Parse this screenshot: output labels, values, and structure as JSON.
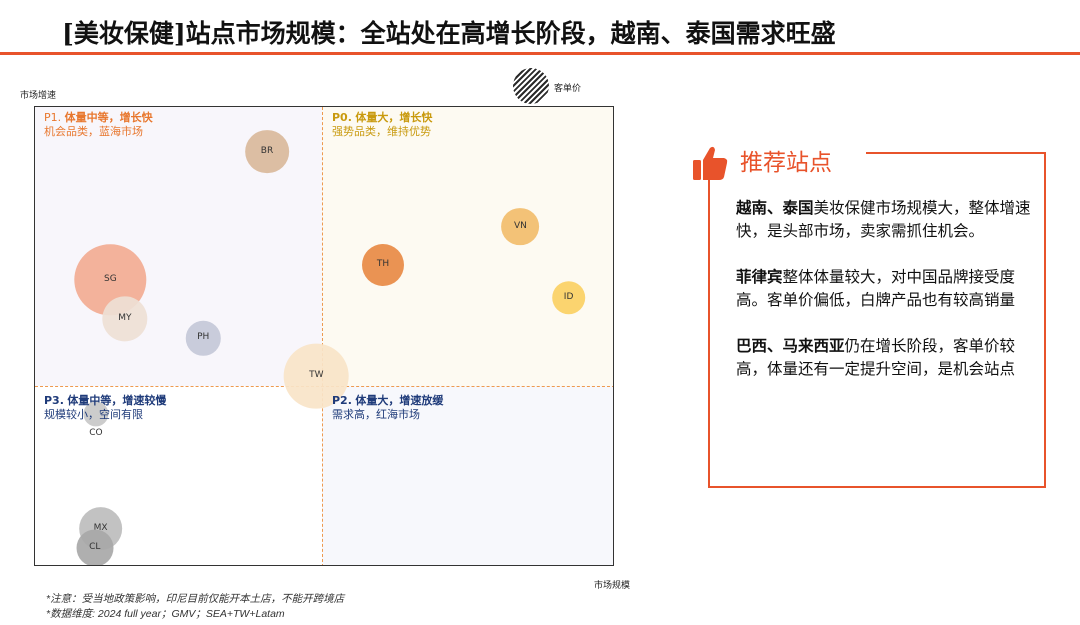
{
  "title": "[美妆保健]站点市场规模：全站处在高增长阶段，越南、泰国需求旺盛",
  "chart_data": {
    "type": "bubble",
    "xlabel": "市场规模",
    "ylabel": "市场增速",
    "size_legend": "客单价",
    "quadrants": [
      {
        "id": "p1",
        "prefix": "P1.",
        "title": "体量中等，增长快",
        "subtitle": "机会品类，蓝海市场"
      },
      {
        "id": "p0",
        "prefix": "P0.",
        "title": "体量大，增长快",
        "subtitle": "强势品类，维持优势"
      },
      {
        "id": "p3",
        "prefix": "P3.",
        "title": "体量中等，增速较慢",
        "subtitle": "规模较小，空间有限"
      },
      {
        "id": "p2",
        "prefix": "P2.",
        "title": "体量大，增速放缓",
        "subtitle": "需求高，红海市场"
      }
    ],
    "x_split": 0.495,
    "y_split": 0.393,
    "points": [
      {
        "label": "BR",
        "x": 0.4,
        "y": 0.903,
        "size": 0.52,
        "color": "#d9b99b"
      },
      {
        "label": "SG",
        "x": 0.13,
        "y": 0.625,
        "size": 0.85,
        "color": "#f2ab93"
      },
      {
        "label": "MY",
        "x": 0.155,
        "y": 0.54,
        "size": 0.54,
        "color": "#eee0d5"
      },
      {
        "label": "PH",
        "x": 0.29,
        "y": 0.497,
        "size": 0.41,
        "color": "#c4c8d8"
      },
      {
        "label": "TW",
        "x": 0.485,
        "y": 0.415,
        "size": 0.77,
        "color": "#f8e4c8"
      },
      {
        "label": "CO",
        "x": 0.105,
        "y": 0.333,
        "size": 0.3,
        "color": "#c8c8c8",
        "label_below": true
      },
      {
        "label": "MX",
        "x": 0.113,
        "y": 0.083,
        "size": 0.52,
        "color": "#bdbdbd"
      },
      {
        "label": "CL",
        "x": 0.103,
        "y": 0.041,
        "size": 0.44,
        "color": "#a8a8a8"
      },
      {
        "label": "TH",
        "x": 0.6,
        "y": 0.656,
        "size": 0.5,
        "color": "#e88a45"
      },
      {
        "label": "VN",
        "x": 0.837,
        "y": 0.74,
        "size": 0.45,
        "color": "#f2bd6c"
      },
      {
        "label": "ID",
        "x": 0.92,
        "y": 0.585,
        "size": 0.4,
        "color": "#fbd064"
      }
    ]
  },
  "notes": {
    "line1": "*注意：受当地政策影响，印尼目前仅能开本土店，不能开跨境店",
    "line2": "*数据维度: 2024 full year；GMV；SEA+TW+Latam"
  },
  "recommend": {
    "title": "推荐站点",
    "items": [
      {
        "strong": "越南、泰国",
        "text": "美妆保健市场规模大，整体增速快，是头部市场，卖家需抓住机会。"
      },
      {
        "strong": "菲律宾",
        "text": "整体体量较大，对中国品牌接受度高。客单价偏低，白牌产品也有较高销量"
      },
      {
        "strong": "巴西、马来西亚",
        "text": "仍在增长阶段，客单价较高，体量还有一定提升空间，是机会站点"
      }
    ]
  },
  "colors": {
    "accent": "#e8532b",
    "p1": "#e8772e",
    "p0": "#c99a0e",
    "p2p3": "#1f3b7a",
    "divider": "#ee9a4f"
  }
}
